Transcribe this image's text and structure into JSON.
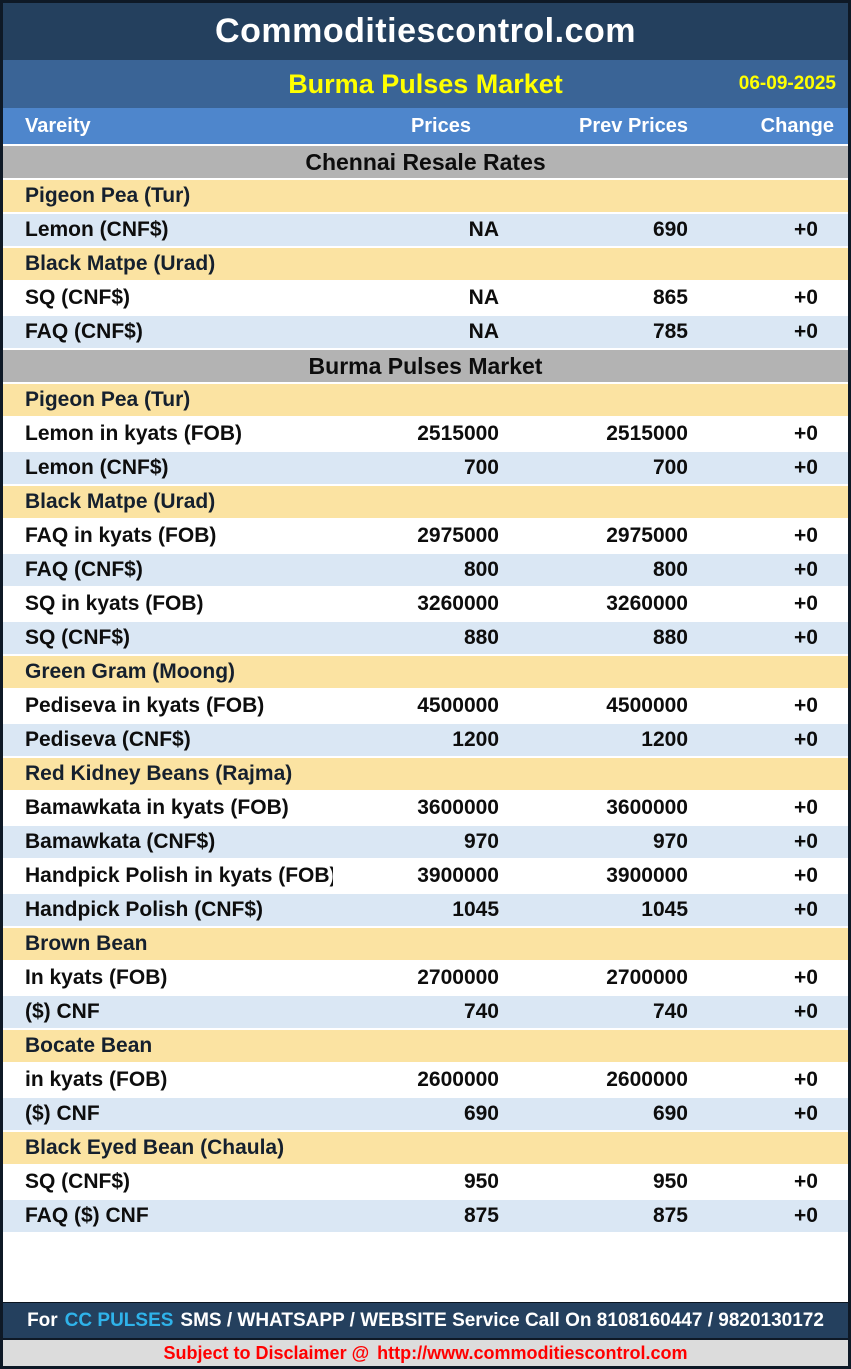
{
  "site_title": "Commoditiescontrol.com",
  "report": {
    "title": "Burma Pulses Market",
    "date": "06-09-2025"
  },
  "table": {
    "columns": [
      "Vareity",
      "Prices",
      "Prev Prices",
      "Change"
    ],
    "rows": [
      {
        "kind": "section",
        "label": "Chennai Resale Rates"
      },
      {
        "kind": "category",
        "label": "Pigeon Pea (Tur)"
      },
      {
        "kind": "data",
        "label": "Lemon (CNF$)",
        "price": "NA",
        "prev": "690",
        "change": "+0"
      },
      {
        "kind": "category",
        "label": "Black Matpe (Urad)"
      },
      {
        "kind": "data",
        "label": "SQ (CNF$)",
        "price": "NA",
        "prev": "865",
        "change": "+0"
      },
      {
        "kind": "data",
        "label": "FAQ (CNF$)",
        "price": "NA",
        "prev": "785",
        "change": "+0"
      },
      {
        "kind": "section",
        "label": "Burma Pulses Market"
      },
      {
        "kind": "category",
        "label": "Pigeon Pea (Tur)"
      },
      {
        "kind": "data",
        "label": "Lemon in kyats (FOB)",
        "price": "2515000",
        "prev": "2515000",
        "change": "+0"
      },
      {
        "kind": "data",
        "label": "Lemon (CNF$)",
        "price": "700",
        "prev": "700",
        "change": "+0"
      },
      {
        "kind": "category",
        "label": "Black Matpe (Urad)"
      },
      {
        "kind": "data",
        "label": "FAQ in kyats (FOB)",
        "price": "2975000",
        "prev": "2975000",
        "change": "+0"
      },
      {
        "kind": "data",
        "label": "FAQ (CNF$)",
        "price": "800",
        "prev": "800",
        "change": "+0"
      },
      {
        "kind": "data",
        "label": "SQ in kyats (FOB)",
        "price": "3260000",
        "prev": "3260000",
        "change": "+0"
      },
      {
        "kind": "data",
        "label": "SQ (CNF$)",
        "price": "880",
        "prev": "880",
        "change": "+0"
      },
      {
        "kind": "category",
        "label": "Green Gram (Moong)"
      },
      {
        "kind": "data",
        "label": "Pediseva in kyats (FOB)",
        "price": "4500000",
        "prev": "4500000",
        "change": "+0"
      },
      {
        "kind": "data",
        "label": "Pediseva (CNF$)",
        "price": "1200",
        "prev": "1200",
        "change": "+0"
      },
      {
        "kind": "category",
        "label": "Red Kidney Beans (Rajma)"
      },
      {
        "kind": "data",
        "label": "Bamawkata in kyats (FOB)",
        "price": "3600000",
        "prev": "3600000",
        "change": "+0"
      },
      {
        "kind": "data",
        "label": "Bamawkata (CNF$)",
        "price": "970",
        "prev": "970",
        "change": "+0"
      },
      {
        "kind": "data",
        "label": "Handpick Polish in kyats (FOB)",
        "price": "3900000",
        "prev": "3900000",
        "change": "+0"
      },
      {
        "kind": "data",
        "label": "Handpick Polish (CNF$)",
        "price": "1045",
        "prev": "1045",
        "change": "+0"
      },
      {
        "kind": "category",
        "label": "Brown Bean"
      },
      {
        "kind": "data",
        "label": "In kyats (FOB)",
        "price": "2700000",
        "prev": "2700000",
        "change": "+0"
      },
      {
        "kind": "data",
        "label": "($) CNF",
        "price": "740",
        "prev": "740",
        "change": "+0"
      },
      {
        "kind": "category",
        "label": "Bocate Bean"
      },
      {
        "kind": "data",
        "label": "in kyats (FOB)",
        "price": "2600000",
        "prev": "2600000",
        "change": "+0"
      },
      {
        "kind": "data",
        "label": "($) CNF",
        "price": "690",
        "prev": "690",
        "change": "+0"
      },
      {
        "kind": "category",
        "label": "Black Eyed Bean (Chaula)"
      },
      {
        "kind": "data",
        "label": "SQ (CNF$)",
        "price": "950",
        "prev": "950",
        "change": "+0"
      },
      {
        "kind": "data",
        "label": "FAQ ($) CNF",
        "price": "875",
        "prev": "875",
        "change": "+0"
      }
    ]
  },
  "footer": {
    "service_prefix": "For",
    "service_brand": "CC PULSES",
    "service_rest": "SMS / WHATSAPP / WEBSITE Service Call On 8108160447 / 9820130172",
    "disclaimer_prefix": "Subject to Disclaimer @",
    "disclaimer_url": "http://www.commoditiescontrol.com"
  },
  "colors": {
    "masthead_navy": "#24405e",
    "report_bar_blue": "#3a6496",
    "column_header_blue": "#4e86cc",
    "section_gray": "#b3b3b3",
    "category_cream": "#fbe3a2",
    "alt_row_blue": "#dae7f4",
    "change_green": "#0e870e",
    "accent_yellow": "#ffff00",
    "brand_cyan": "#2fb3ea",
    "disclaimer_red": "#ff0000"
  }
}
